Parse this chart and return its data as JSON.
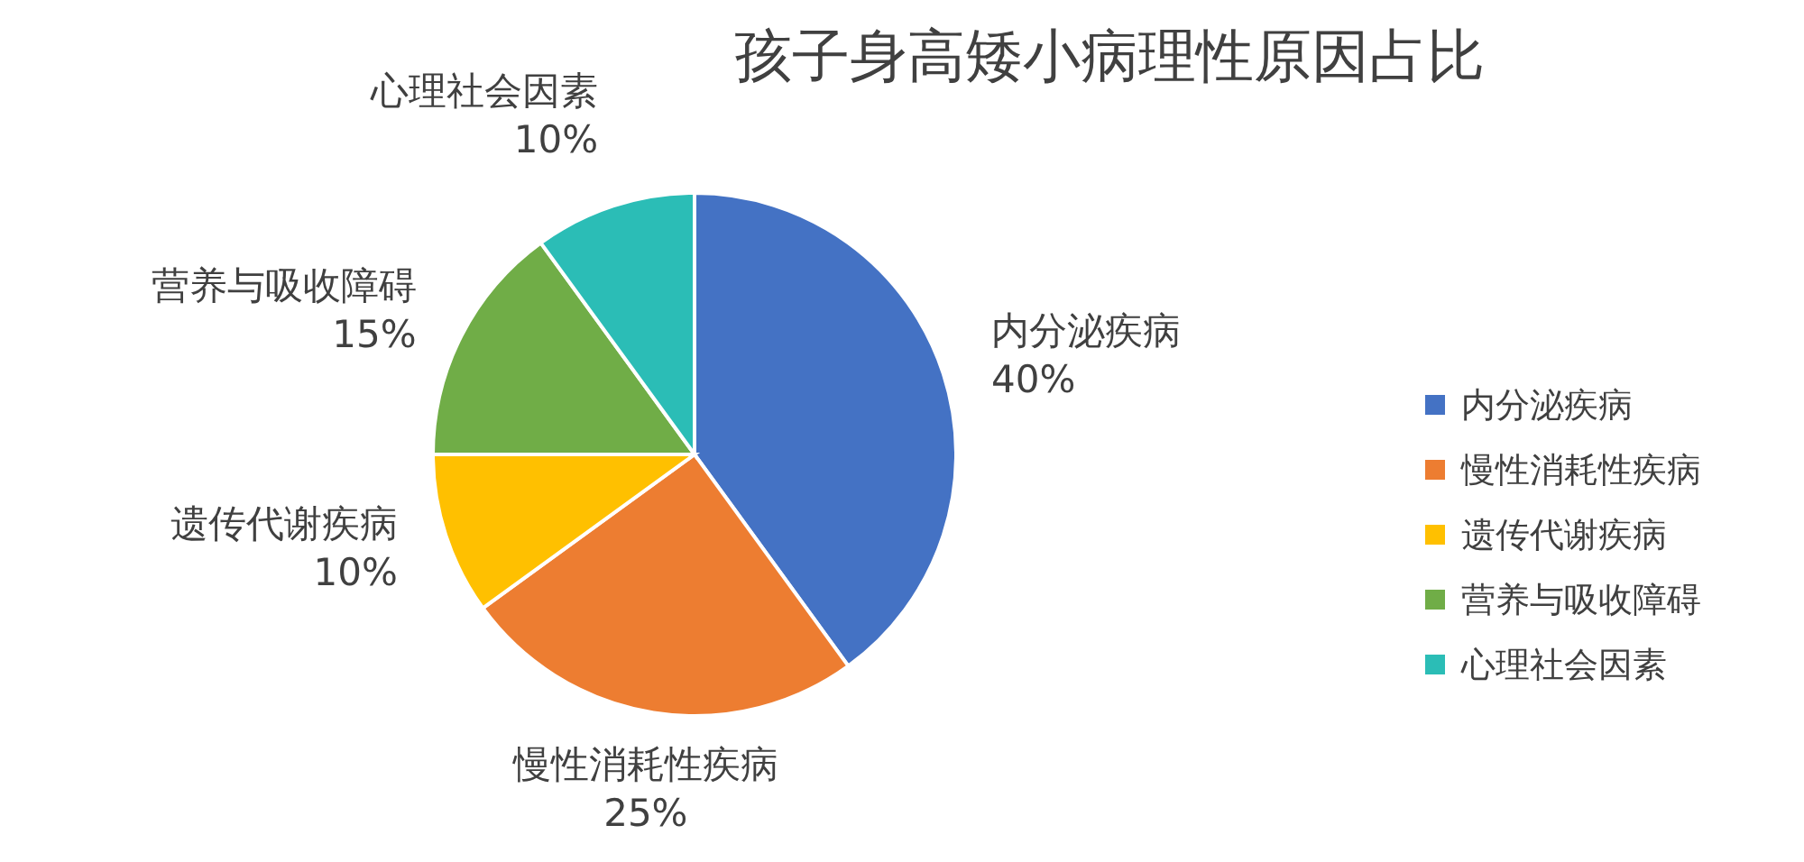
{
  "chart_data": {
    "type": "pie",
    "title": "孩子身高矮小病理性原因占比",
    "categories": [
      "内分泌疾病",
      "慢性消耗性疾病",
      "遗传代谢疾病",
      "营养与吸收障碍",
      "心理社会因素"
    ],
    "values": [
      40,
      25,
      10,
      15,
      10
    ],
    "colors": [
      "#4472c4",
      "#ed7d31",
      "#ffc000",
      "#70ad47",
      "#2bbdb6"
    ],
    "value_labels": [
      "40%",
      "25%",
      "10%",
      "15%",
      "10%"
    ],
    "legend": "right"
  }
}
